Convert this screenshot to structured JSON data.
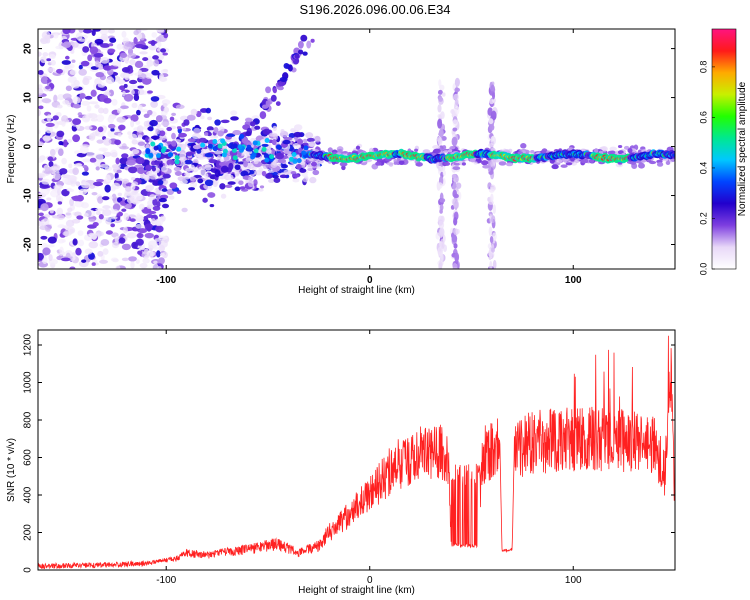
{
  "title": "S196.2026.096.00.06.E34",
  "chart_data": [
    {
      "type": "heatmap",
      "title": "S196.2026.096.00.06.E34",
      "xlabel": "Height of straight line (km)",
      "ylabel": "Frequency (Hz)",
      "xlim": [
        -163,
        150
      ],
      "ylim": [
        -25,
        24
      ],
      "xticks": [
        -100,
        0,
        100
      ],
      "yticks": [
        -20,
        -10,
        0,
        10,
        20
      ],
      "colorbar": {
        "label": "Normalized spectral amplitude",
        "range": [
          0,
          0.95
        ],
        "ticks": [
          0.0,
          0.2,
          0.4,
          0.6,
          0.8
        ],
        "colormap": [
          "#ffffff",
          "#e8d8f8",
          "#7e3fe0",
          "#2200cc",
          "#0044ff",
          "#00c8ff",
          "#00e890",
          "#22ff00",
          "#c8f000",
          "#ffaa00",
          "#ff1a1a",
          "#ff1480"
        ]
      },
      "features": {
        "ridge_frequency_hz": -2,
        "ridge_start_km": -30,
        "ridge_end_km": 150,
        "peak_segments_km": [
          [
            -20,
            12
          ],
          [
            15,
            28
          ],
          [
            38,
            52
          ],
          [
            60,
            82
          ],
          [
            110,
            128
          ]
        ],
        "noisy_region_km": [
          -163,
          -110
        ],
        "chirp_start": {
          "km": -75,
          "hz": -7
        },
        "chirp_end": {
          "km": -30,
          "hz": 22
        },
        "vertical_streaks_km": [
          35,
          42,
          60
        ]
      }
    },
    {
      "type": "line",
      "xlabel": "Height of straight line (km)",
      "ylabel": "SNR (10 * v/v)",
      "xlim": [
        -163,
        150
      ],
      "ylim": [
        0,
        1280
      ],
      "xticks": [
        -100,
        0,
        100
      ],
      "yticks": [
        0,
        200,
        400,
        600,
        800,
        1000,
        1200
      ],
      "color": "#ff2020",
      "series": [
        {
          "name": "SNR",
          "x": [
            -163,
            -130,
            -110,
            -95,
            -90,
            -80,
            -60,
            -45,
            -35,
            -25,
            -20,
            -10,
            0,
            5,
            10,
            15,
            20,
            25,
            30,
            35,
            38,
            39,
            40,
            47,
            54,
            55,
            57,
            60,
            64,
            65,
            70,
            71,
            72,
            80,
            90,
            100,
            110,
            120,
            130,
            140,
            145,
            148,
            150
          ],
          "y": [
            20,
            28,
            35,
            60,
            90,
            80,
            110,
            140,
            90,
            130,
            200,
            300,
            400,
            470,
            530,
            570,
            600,
            615,
            610,
            620,
            600,
            560,
            135,
            130,
            130,
            600,
            620,
            640,
            650,
            100,
            110,
            640,
            650,
            680,
            690,
            700,
            710,
            690,
            700,
            680,
            520,
            1000,
            300
          ]
        }
      ]
    }
  ]
}
